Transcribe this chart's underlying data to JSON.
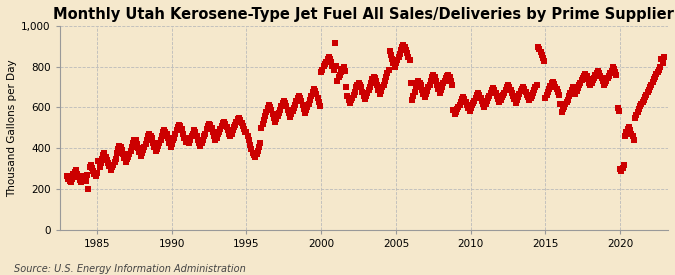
{
  "title": "Monthly Utah Kerosene-Type Jet Fuel All Sales/Deliveries by Prime Supplier",
  "ylabel": "Thousand Gallons per Day",
  "source": "Source: U.S. Energy Information Administration",
  "background_color": "#f5e8cc",
  "marker_color": "#cc0000",
  "marker": "s",
  "marker_size": 4,
  "xlim_start": 1982.5,
  "xlim_end": 2023.2,
  "ylim": [
    0,
    1000
  ],
  "yticks": [
    0,
    200,
    400,
    600,
    800,
    1000
  ],
  "xticks": [
    1985,
    1990,
    1995,
    2000,
    2005,
    2010,
    2015,
    2020
  ],
  "grid_color": "#bbbbbb",
  "title_fontsize": 10.5,
  "label_fontsize": 7.5,
  "tick_fontsize": 7.5,
  "source_fontsize": 7,
  "data_points": [
    [
      1983.0,
      262
    ],
    [
      1983.08,
      248
    ],
    [
      1983.17,
      238
    ],
    [
      1983.25,
      232
    ],
    [
      1983.33,
      248
    ],
    [
      1983.42,
      272
    ],
    [
      1983.5,
      283
    ],
    [
      1983.58,
      292
    ],
    [
      1983.67,
      272
    ],
    [
      1983.75,
      258
    ],
    [
      1983.83,
      242
    ],
    [
      1983.92,
      232
    ],
    [
      1984.0,
      252
    ],
    [
      1984.08,
      262
    ],
    [
      1984.17,
      252
    ],
    [
      1984.25,
      238
    ],
    [
      1984.33,
      268
    ],
    [
      1984.42,
      198
    ],
    [
      1984.5,
      308
    ],
    [
      1984.58,
      318
    ],
    [
      1984.67,
      302
    ],
    [
      1984.75,
      288
    ],
    [
      1984.83,
      272
    ],
    [
      1984.92,
      262
    ],
    [
      1985.0,
      278
    ],
    [
      1985.08,
      338
    ],
    [
      1985.17,
      308
    ],
    [
      1985.25,
      328
    ],
    [
      1985.33,
      348
    ],
    [
      1985.42,
      368
    ],
    [
      1985.5,
      378
    ],
    [
      1985.58,
      358
    ],
    [
      1985.67,
      342
    ],
    [
      1985.75,
      328
    ],
    [
      1985.83,
      312
    ],
    [
      1985.92,
      292
    ],
    [
      1986.0,
      308
    ],
    [
      1986.08,
      318
    ],
    [
      1986.17,
      332
    ],
    [
      1986.25,
      348
    ],
    [
      1986.33,
      378
    ],
    [
      1986.42,
      398
    ],
    [
      1986.5,
      412
    ],
    [
      1986.58,
      408
    ],
    [
      1986.67,
      392
    ],
    [
      1986.75,
      372
    ],
    [
      1986.83,
      352
    ],
    [
      1986.92,
      332
    ],
    [
      1987.0,
      348
    ],
    [
      1987.08,
      358
    ],
    [
      1987.17,
      372
    ],
    [
      1987.25,
      388
    ],
    [
      1987.33,
      408
    ],
    [
      1987.42,
      428
    ],
    [
      1987.5,
      442
    ],
    [
      1987.58,
      438
    ],
    [
      1987.67,
      422
    ],
    [
      1987.75,
      402
    ],
    [
      1987.83,
      382
    ],
    [
      1987.92,
      362
    ],
    [
      1988.0,
      378
    ],
    [
      1988.08,
      392
    ],
    [
      1988.17,
      408
    ],
    [
      1988.25,
      422
    ],
    [
      1988.33,
      442
    ],
    [
      1988.42,
      458
    ],
    [
      1988.5,
      468
    ],
    [
      1988.58,
      462
    ],
    [
      1988.67,
      448
    ],
    [
      1988.75,
      428
    ],
    [
      1988.83,
      408
    ],
    [
      1988.92,
      388
    ],
    [
      1989.0,
      398
    ],
    [
      1989.08,
      412
    ],
    [
      1989.17,
      428
    ],
    [
      1989.25,
      442
    ],
    [
      1989.33,
      462
    ],
    [
      1989.42,
      478
    ],
    [
      1989.5,
      488
    ],
    [
      1989.58,
      482
    ],
    [
      1989.67,
      468
    ],
    [
      1989.75,
      448
    ],
    [
      1989.83,
      428
    ],
    [
      1989.92,
      408
    ],
    [
      1990.0,
      422
    ],
    [
      1990.08,
      438
    ],
    [
      1990.17,
      452
    ],
    [
      1990.25,
      468
    ],
    [
      1990.33,
      488
    ],
    [
      1990.42,
      502
    ],
    [
      1990.5,
      512
    ],
    [
      1990.58,
      508
    ],
    [
      1990.67,
      492
    ],
    [
      1990.75,
      472
    ],
    [
      1990.83,
      452
    ],
    [
      1990.92,
      432
    ],
    [
      1991.0,
      448
    ],
    [
      1991.08,
      438
    ],
    [
      1991.17,
      428
    ],
    [
      1991.25,
      442
    ],
    [
      1991.33,
      458
    ],
    [
      1991.42,
      472
    ],
    [
      1991.5,
      488
    ],
    [
      1991.58,
      478
    ],
    [
      1991.67,
      462
    ],
    [
      1991.75,
      442
    ],
    [
      1991.83,
      428
    ],
    [
      1991.92,
      412
    ],
    [
      1992.0,
      428
    ],
    [
      1992.08,
      442
    ],
    [
      1992.17,
      458
    ],
    [
      1992.25,
      472
    ],
    [
      1992.33,
      492
    ],
    [
      1992.42,
      508
    ],
    [
      1992.5,
      518
    ],
    [
      1992.58,
      512
    ],
    [
      1992.67,
      498
    ],
    [
      1992.75,
      478
    ],
    [
      1992.83,
      458
    ],
    [
      1992.92,
      438
    ],
    [
      1993.0,
      452
    ],
    [
      1993.08,
      468
    ],
    [
      1993.17,
      482
    ],
    [
      1993.25,
      492
    ],
    [
      1993.33,
      508
    ],
    [
      1993.42,
      522
    ],
    [
      1993.5,
      528
    ],
    [
      1993.58,
      518
    ],
    [
      1993.67,
      502
    ],
    [
      1993.75,
      488
    ],
    [
      1993.83,
      472
    ],
    [
      1993.92,
      458
    ],
    [
      1994.0,
      472
    ],
    [
      1994.08,
      488
    ],
    [
      1994.17,
      502
    ],
    [
      1994.25,
      512
    ],
    [
      1994.33,
      528
    ],
    [
      1994.42,
      542
    ],
    [
      1994.5,
      548
    ],
    [
      1994.58,
      538
    ],
    [
      1994.67,
      522
    ],
    [
      1994.75,
      508
    ],
    [
      1994.83,
      492
    ],
    [
      1994.92,
      478
    ],
    [
      1995.0,
      478
    ],
    [
      1995.08,
      458
    ],
    [
      1995.17,
      438
    ],
    [
      1995.25,
      418
    ],
    [
      1995.33,
      398
    ],
    [
      1995.42,
      378
    ],
    [
      1995.5,
      368
    ],
    [
      1995.58,
      358
    ],
    [
      1995.67,
      372
    ],
    [
      1995.75,
      388
    ],
    [
      1995.83,
      408
    ],
    [
      1995.92,
      428
    ],
    [
      1996.0,
      498
    ],
    [
      1996.08,
      518
    ],
    [
      1996.17,
      538
    ],
    [
      1996.25,
      558
    ],
    [
      1996.33,
      578
    ],
    [
      1996.42,
      598
    ],
    [
      1996.5,
      612
    ],
    [
      1996.58,
      602
    ],
    [
      1996.67,
      588
    ],
    [
      1996.75,
      568
    ],
    [
      1996.83,
      548
    ],
    [
      1996.92,
      528
    ],
    [
      1997.0,
      542
    ],
    [
      1997.08,
      558
    ],
    [
      1997.17,
      572
    ],
    [
      1997.25,
      588
    ],
    [
      1997.33,
      608
    ],
    [
      1997.42,
      622
    ],
    [
      1997.5,
      632
    ],
    [
      1997.58,
      622
    ],
    [
      1997.67,
      608
    ],
    [
      1997.75,
      588
    ],
    [
      1997.83,
      572
    ],
    [
      1997.92,
      552
    ],
    [
      1998.0,
      568
    ],
    [
      1998.08,
      582
    ],
    [
      1998.17,
      598
    ],
    [
      1998.25,
      612
    ],
    [
      1998.33,
      632
    ],
    [
      1998.42,
      648
    ],
    [
      1998.5,
      658
    ],
    [
      1998.58,
      648
    ],
    [
      1998.67,
      632
    ],
    [
      1998.75,
      612
    ],
    [
      1998.83,
      592
    ],
    [
      1998.92,
      572
    ],
    [
      1999.0,
      588
    ],
    [
      1999.08,
      602
    ],
    [
      1999.17,
      618
    ],
    [
      1999.25,
      638
    ],
    [
      1999.33,
      658
    ],
    [
      1999.42,
      678
    ],
    [
      1999.5,
      692
    ],
    [
      1999.58,
      682
    ],
    [
      1999.67,
      668
    ],
    [
      1999.75,
      648
    ],
    [
      1999.83,
      628
    ],
    [
      1999.92,
      608
    ],
    [
      2000.0,
      772
    ],
    [
      2000.08,
      782
    ],
    [
      2000.17,
      802
    ],
    [
      2000.25,
      812
    ],
    [
      2000.33,
      822
    ],
    [
      2000.42,
      838
    ],
    [
      2000.5,
      848
    ],
    [
      2000.58,
      838
    ],
    [
      2000.67,
      822
    ],
    [
      2000.75,
      802
    ],
    [
      2000.83,
      782
    ],
    [
      2000.92,
      918
    ],
    [
      2001.0,
      802
    ],
    [
      2001.08,
      728
    ],
    [
      2001.17,
      748
    ],
    [
      2001.25,
      758
    ],
    [
      2001.33,
      772
    ],
    [
      2001.42,
      788
    ],
    [
      2001.5,
      798
    ],
    [
      2001.58,
      778
    ],
    [
      2001.67,
      698
    ],
    [
      2001.75,
      658
    ],
    [
      2001.83,
      638
    ],
    [
      2001.92,
      622
    ],
    [
      2002.0,
      638
    ],
    [
      2002.08,
      648
    ],
    [
      2002.17,
      662
    ],
    [
      2002.25,
      678
    ],
    [
      2002.33,
      698
    ],
    [
      2002.42,
      712
    ],
    [
      2002.5,
      722
    ],
    [
      2002.58,
      712
    ],
    [
      2002.67,
      698
    ],
    [
      2002.75,
      678
    ],
    [
      2002.83,
      658
    ],
    [
      2002.92,
      642
    ],
    [
      2003.0,
      658
    ],
    [
      2003.08,
      672
    ],
    [
      2003.17,
      688
    ],
    [
      2003.25,
      702
    ],
    [
      2003.33,
      722
    ],
    [
      2003.42,
      738
    ],
    [
      2003.5,
      748
    ],
    [
      2003.58,
      742
    ],
    [
      2003.67,
      728
    ],
    [
      2003.75,
      708
    ],
    [
      2003.83,
      688
    ],
    [
      2003.92,
      668
    ],
    [
      2004.0,
      682
    ],
    [
      2004.08,
      698
    ],
    [
      2004.17,
      712
    ],
    [
      2004.25,
      728
    ],
    [
      2004.33,
      748
    ],
    [
      2004.42,
      768
    ],
    [
      2004.5,
      782
    ],
    [
      2004.58,
      878
    ],
    [
      2004.67,
      858
    ],
    [
      2004.75,
      838
    ],
    [
      2004.83,
      818
    ],
    [
      2004.92,
      798
    ],
    [
      2005.0,
      818
    ],
    [
      2005.08,
      832
    ],
    [
      2005.17,
      848
    ],
    [
      2005.25,
      862
    ],
    [
      2005.33,
      882
    ],
    [
      2005.42,
      898
    ],
    [
      2005.5,
      908
    ],
    [
      2005.58,
      898
    ],
    [
      2005.67,
      882
    ],
    [
      2005.75,
      868
    ],
    [
      2005.83,
      848
    ],
    [
      2005.92,
      832
    ],
    [
      2006.0,
      718
    ],
    [
      2006.08,
      638
    ],
    [
      2006.17,
      658
    ],
    [
      2006.25,
      678
    ],
    [
      2006.33,
      698
    ],
    [
      2006.42,
      718
    ],
    [
      2006.5,
      732
    ],
    [
      2006.58,
      722
    ],
    [
      2006.67,
      708
    ],
    [
      2006.75,
      688
    ],
    [
      2006.83,
      668
    ],
    [
      2006.92,
      652
    ],
    [
      2007.0,
      668
    ],
    [
      2007.08,
      682
    ],
    [
      2007.17,
      698
    ],
    [
      2007.25,
      712
    ],
    [
      2007.33,
      732
    ],
    [
      2007.42,
      748
    ],
    [
      2007.5,
      758
    ],
    [
      2007.58,
      748
    ],
    [
      2007.67,
      732
    ],
    [
      2007.75,
      712
    ],
    [
      2007.83,
      692
    ],
    [
      2007.92,
      672
    ],
    [
      2008.0,
      688
    ],
    [
      2008.08,
      702
    ],
    [
      2008.17,
      718
    ],
    [
      2008.25,
      728
    ],
    [
      2008.33,
      742
    ],
    [
      2008.42,
      752
    ],
    [
      2008.5,
      758
    ],
    [
      2008.58,
      748
    ],
    [
      2008.67,
      732
    ],
    [
      2008.75,
      712
    ],
    [
      2008.83,
      588
    ],
    [
      2008.92,
      568
    ],
    [
      2009.0,
      578
    ],
    [
      2009.08,
      592
    ],
    [
      2009.17,
      602
    ],
    [
      2009.25,
      612
    ],
    [
      2009.33,
      628
    ],
    [
      2009.42,
      642
    ],
    [
      2009.5,
      652
    ],
    [
      2009.58,
      642
    ],
    [
      2009.67,
      628
    ],
    [
      2009.75,
      612
    ],
    [
      2009.83,
      598
    ],
    [
      2009.92,
      582
    ],
    [
      2010.0,
      598
    ],
    [
      2010.08,
      612
    ],
    [
      2010.17,
      622
    ],
    [
      2010.25,
      632
    ],
    [
      2010.33,
      648
    ],
    [
      2010.42,
      662
    ],
    [
      2010.5,
      672
    ],
    [
      2010.58,
      662
    ],
    [
      2010.67,
      648
    ],
    [
      2010.75,
      632
    ],
    [
      2010.83,
      618
    ],
    [
      2010.92,
      602
    ],
    [
      2011.0,
      618
    ],
    [
      2011.08,
      632
    ],
    [
      2011.17,
      645
    ],
    [
      2011.25,
      655
    ],
    [
      2011.33,
      670
    ],
    [
      2011.42,
      685
    ],
    [
      2011.5,
      695
    ],
    [
      2011.58,
      685
    ],
    [
      2011.67,
      670
    ],
    [
      2011.75,
      655
    ],
    [
      2011.83,
      640
    ],
    [
      2011.92,
      625
    ],
    [
      2012.0,
      638
    ],
    [
      2012.08,
      652
    ],
    [
      2012.17,
      662
    ],
    [
      2012.25,
      672
    ],
    [
      2012.33,
      688
    ],
    [
      2012.42,
      702
    ],
    [
      2012.5,
      712
    ],
    [
      2012.58,
      702
    ],
    [
      2012.67,
      688
    ],
    [
      2012.75,
      672
    ],
    [
      2012.83,
      658
    ],
    [
      2012.92,
      642
    ],
    [
      2013.0,
      622
    ],
    [
      2013.08,
      638
    ],
    [
      2013.17,
      652
    ],
    [
      2013.25,
      665
    ],
    [
      2013.33,
      680
    ],
    [
      2013.42,
      692
    ],
    [
      2013.5,
      700
    ],
    [
      2013.58,
      690
    ],
    [
      2013.67,
      678
    ],
    [
      2013.75,
      662
    ],
    [
      2013.83,
      650
    ],
    [
      2013.92,
      635
    ],
    [
      2014.0,
      648
    ],
    [
      2014.08,
      658
    ],
    [
      2014.17,
      672
    ],
    [
      2014.25,
      685
    ],
    [
      2014.33,
      698
    ],
    [
      2014.42,
      712
    ],
    [
      2014.5,
      898
    ],
    [
      2014.58,
      888
    ],
    [
      2014.67,
      872
    ],
    [
      2014.75,
      858
    ],
    [
      2014.83,
      842
    ],
    [
      2014.92,
      828
    ],
    [
      2015.0,
      648
    ],
    [
      2015.08,
      662
    ],
    [
      2015.17,
      678
    ],
    [
      2015.25,
      690
    ],
    [
      2015.33,
      704
    ],
    [
      2015.42,
      718
    ],
    [
      2015.5,
      725
    ],
    [
      2015.58,
      715
    ],
    [
      2015.67,
      702
    ],
    [
      2015.75,
      690
    ],
    [
      2015.83,
      676
    ],
    [
      2015.92,
      662
    ],
    [
      2016.0,
      618
    ],
    [
      2016.08,
      578
    ],
    [
      2016.17,
      592
    ],
    [
      2016.25,
      602
    ],
    [
      2016.33,
      615
    ],
    [
      2016.42,
      628
    ],
    [
      2016.5,
      638
    ],
    [
      2016.58,
      658
    ],
    [
      2016.67,
      672
    ],
    [
      2016.75,
      688
    ],
    [
      2016.83,
      702
    ],
    [
      2016.92,
      688
    ],
    [
      2017.0,
      668
    ],
    [
      2017.08,
      682
    ],
    [
      2017.17,
      695
    ],
    [
      2017.25,
      708
    ],
    [
      2017.33,
      722
    ],
    [
      2017.42,
      735
    ],
    [
      2017.5,
      745
    ],
    [
      2017.58,
      755
    ],
    [
      2017.67,
      765
    ],
    [
      2017.75,
      752
    ],
    [
      2017.83,
      738
    ],
    [
      2017.92,
      722
    ],
    [
      2018.0,
      708
    ],
    [
      2018.08,
      722
    ],
    [
      2018.17,
      735
    ],
    [
      2018.25,
      745
    ],
    [
      2018.33,
      758
    ],
    [
      2018.42,
      770
    ],
    [
      2018.5,
      780
    ],
    [
      2018.58,
      770
    ],
    [
      2018.67,
      755
    ],
    [
      2018.75,
      742
    ],
    [
      2018.83,
      728
    ],
    [
      2018.92,
      712
    ],
    [
      2019.0,
      718
    ],
    [
      2019.08,
      730
    ],
    [
      2019.17,
      742
    ],
    [
      2019.25,
      754
    ],
    [
      2019.33,
      768
    ],
    [
      2019.42,
      780
    ],
    [
      2019.5,
      798
    ],
    [
      2019.58,
      788
    ],
    [
      2019.67,
      772
    ],
    [
      2019.75,
      758
    ],
    [
      2019.83,
      598
    ],
    [
      2019.92,
      582
    ],
    [
      2020.0,
      298
    ],
    [
      2020.08,
      288
    ],
    [
      2020.17,
      302
    ],
    [
      2020.25,
      318
    ],
    [
      2020.33,
      458
    ],
    [
      2020.42,
      478
    ],
    [
      2020.5,
      492
    ],
    [
      2020.58,
      502
    ],
    [
      2020.67,
      488
    ],
    [
      2020.75,
      472
    ],
    [
      2020.83,
      458
    ],
    [
      2020.92,
      442
    ],
    [
      2021.0,
      548
    ],
    [
      2021.08,
      562
    ],
    [
      2021.17,
      578
    ],
    [
      2021.25,
      592
    ],
    [
      2021.33,
      605
    ],
    [
      2021.42,
      618
    ],
    [
      2021.5,
      628
    ],
    [
      2021.58,
      638
    ],
    [
      2021.67,
      652
    ],
    [
      2021.75,
      662
    ],
    [
      2021.83,
      678
    ],
    [
      2021.92,
      688
    ],
    [
      2022.0,
      698
    ],
    [
      2022.08,
      712
    ],
    [
      2022.17,
      725
    ],
    [
      2022.25,
      738
    ],
    [
      2022.33,
      750
    ],
    [
      2022.42,
      762
    ],
    [
      2022.5,
      772
    ],
    [
      2022.58,
      782
    ],
    [
      2022.67,
      798
    ],
    [
      2022.75,
      838
    ],
    [
      2022.83,
      818
    ],
    [
      2022.92,
      848
    ]
  ]
}
